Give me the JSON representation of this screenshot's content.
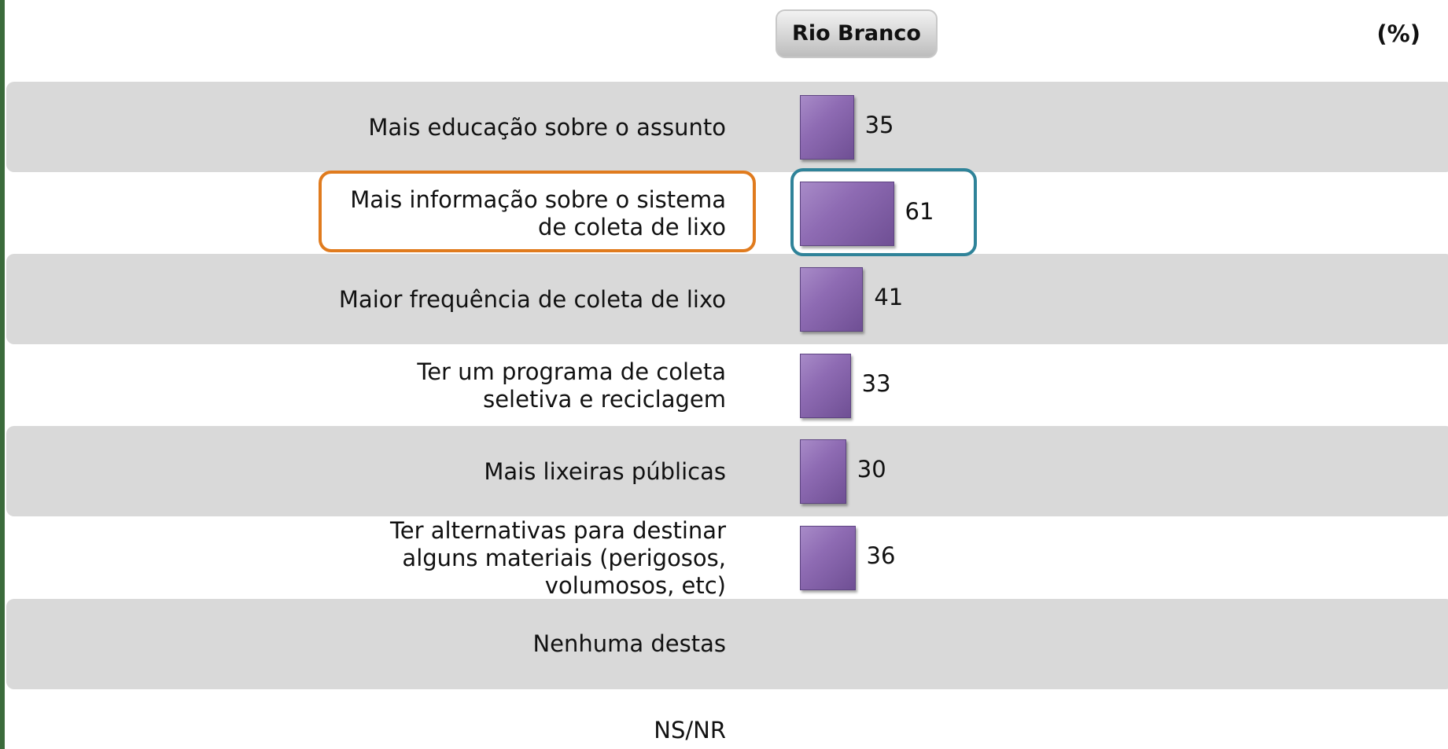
{
  "chart_data": {
    "type": "bar",
    "orientation": "horizontal",
    "unit_label": "(%)",
    "categories": [
      "Mais educação sobre o assunto",
      "Mais informação sobre o sistema de coleta de lixo",
      "Maior frequência de coleta de lixo",
      "Ter um programa de coleta seletiva e reciclagem",
      "Mais lixeiras públicas",
      "Ter alternativas para destinar alguns materiais (perigosos, volumosos, etc)",
      "Nenhuma destas",
      "NS/NR"
    ],
    "series": [
      {
        "name": "Rio Branco",
        "color": "#8e6bb3",
        "values": [
          35,
          61,
          41,
          33,
          30,
          36,
          null,
          null
        ]
      }
    ]
  }
}
